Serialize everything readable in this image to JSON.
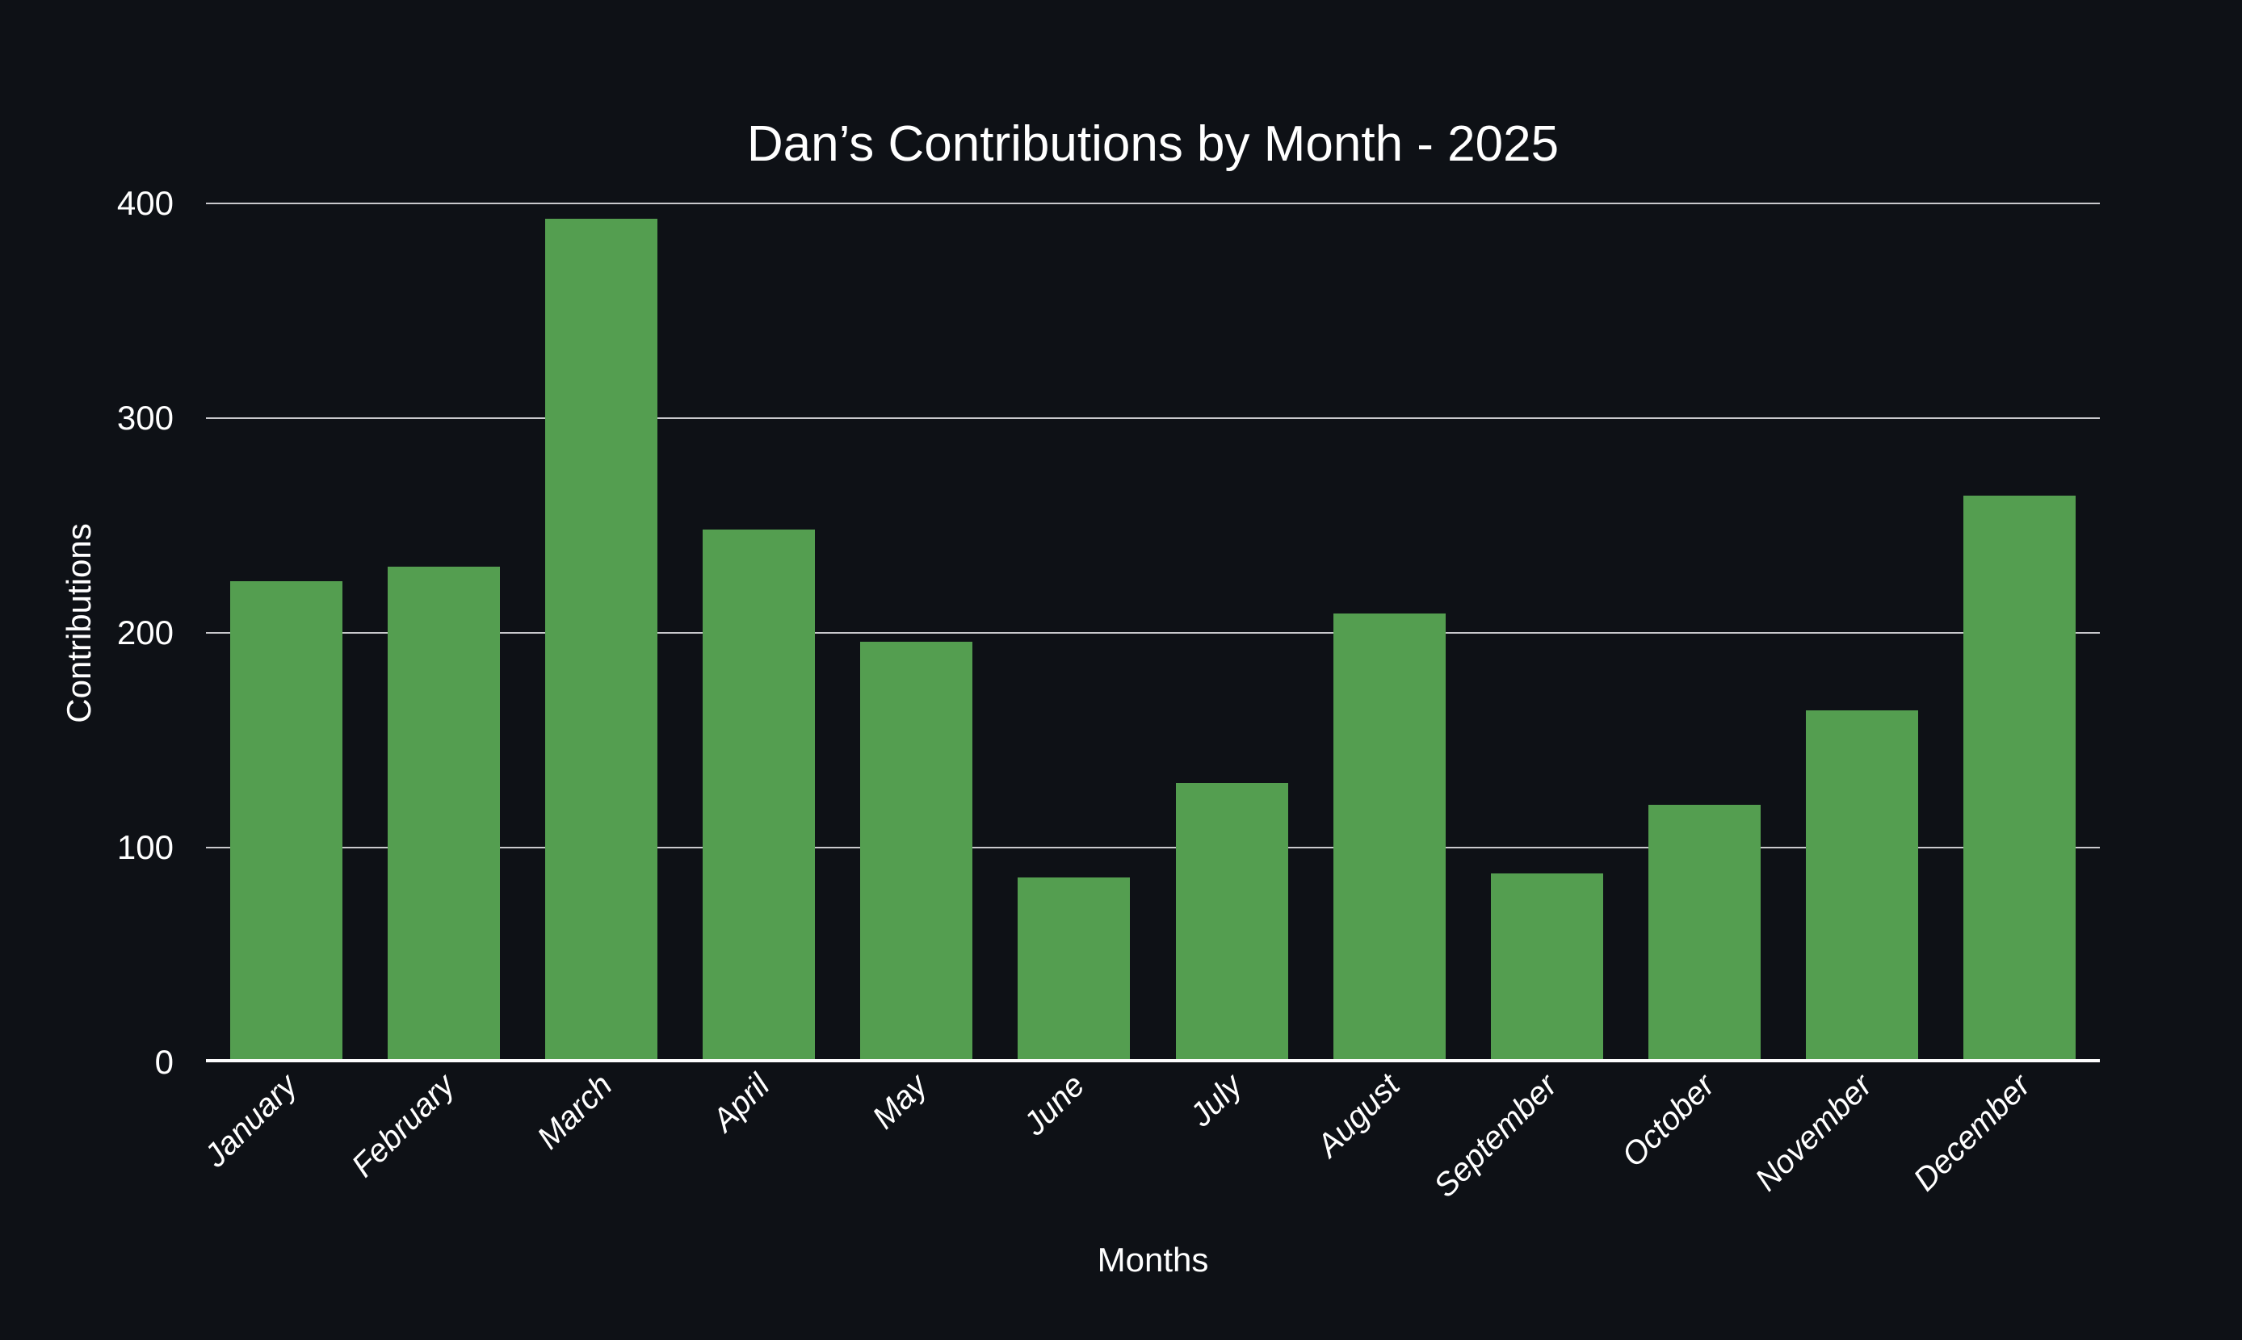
{
  "chart_data": {
    "type": "bar",
    "title": "Dan’s Contributions by Month - 2025",
    "xlabel": "Months",
    "ylabel": "Contributions",
    "categories": [
      "January",
      "February",
      "March",
      "April",
      "May",
      "June",
      "July",
      "August",
      "September",
      "October",
      "November",
      "December"
    ],
    "values": [
      224,
      231,
      393,
      248,
      196,
      86,
      130,
      209,
      88,
      120,
      164,
      264
    ],
    "ylim": [
      0,
      400
    ],
    "yticks": [
      0,
      100,
      200,
      300,
      400
    ],
    "grid": true,
    "legend": false,
    "x_tick_rotation_deg": 45,
    "colors": {
      "bar": "#549e50",
      "background": "#0e1116",
      "gridline": "#c9c9cd",
      "axis_line": "#fcfcfc",
      "text": "#ffffff"
    }
  }
}
